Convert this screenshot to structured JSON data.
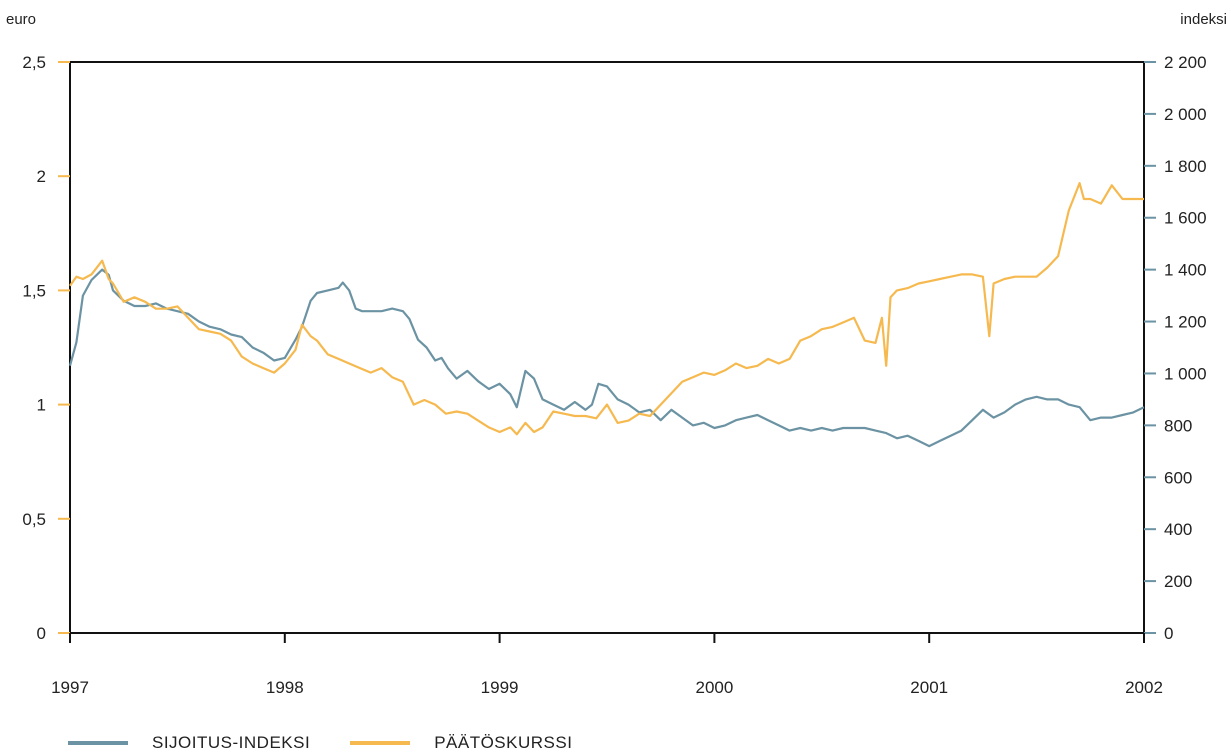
{
  "chart_data": {
    "type": "line",
    "left_axis": {
      "unit": "euro",
      "min": 0,
      "max": 2.5,
      "ticks": [
        0,
        0.5,
        1,
        1.5,
        2,
        2.5
      ],
      "tick_labels": [
        "0",
        "0,5",
        "1",
        "1,5",
        "2",
        "2,5"
      ]
    },
    "right_axis": {
      "unit": "indeksi",
      "min": 0,
      "max": 2200,
      "ticks": [
        0,
        200,
        400,
        600,
        800,
        1000,
        1200,
        1400,
        1600,
        1800,
        2000,
        2200
      ],
      "tick_labels": [
        "0",
        "200",
        "400",
        "600",
        "800",
        "1 000",
        "1 200",
        "1 400",
        "1 600",
        "1 800",
        "2 000",
        "2 200"
      ]
    },
    "x_axis": {
      "min": 1997,
      "max": 2002,
      "ticks": [
        1997,
        1998,
        1999,
        2000,
        2001,
        2002
      ],
      "tick_labels": [
        "1997",
        "1998",
        "1999",
        "2000",
        "2001",
        "2002"
      ]
    },
    "grid": false,
    "legend_position": "bottom-left",
    "series": [
      {
        "name": "SIJOITUS-INDEKSI",
        "axis": "right",
        "color": "#6b93a3",
        "x": [
          1997.0,
          1997.03,
          1997.06,
          1997.1,
          1997.15,
          1997.18,
          1997.2,
          1997.25,
          1997.3,
          1997.35,
          1997.4,
          1997.45,
          1997.5,
          1997.55,
          1997.6,
          1997.65,
          1997.7,
          1997.75,
          1997.8,
          1997.85,
          1997.9,
          1997.95,
          1998.0,
          1998.05,
          1998.08,
          1998.12,
          1998.15,
          1998.2,
          1998.25,
          1998.27,
          1998.3,
          1998.33,
          1998.36,
          1998.4,
          1998.45,
          1998.5,
          1998.55,
          1998.58,
          1998.62,
          1998.66,
          1998.7,
          1998.73,
          1998.76,
          1998.8,
          1998.85,
          1998.9,
          1998.95,
          1999.0,
          1999.05,
          1999.08,
          1999.12,
          1999.16,
          1999.2,
          1999.25,
          1999.3,
          1999.35,
          1999.4,
          1999.43,
          1999.46,
          1999.5,
          1999.55,
          1999.6,
          1999.65,
          1999.7,
          1999.75,
          1999.8,
          1999.85,
          1999.9,
          1999.95,
          2000.0,
          2000.05,
          2000.1,
          2000.15,
          2000.2,
          2000.25,
          2000.3,
          2000.35,
          2000.4,
          2000.45,
          2000.5,
          2000.55,
          2000.6,
          2000.65,
          2000.7,
          2000.75,
          2000.8,
          2000.85,
          2000.9,
          2000.95,
          2001.0,
          2001.05,
          2001.1,
          2001.15,
          2001.2,
          2001.25,
          2001.3,
          2001.35,
          2001.4,
          2001.45,
          2001.5,
          2001.55,
          2001.6,
          2001.65,
          2001.7,
          2001.75,
          2001.8,
          2001.85,
          2001.9,
          2001.95,
          2002.0
        ],
        "values": [
          1030,
          1120,
          1300,
          1360,
          1400,
          1380,
          1320,
          1280,
          1260,
          1260,
          1270,
          1250,
          1240,
          1230,
          1200,
          1180,
          1170,
          1150,
          1140,
          1100,
          1080,
          1050,
          1060,
          1130,
          1180,
          1280,
          1310,
          1320,
          1330,
          1350,
          1320,
          1250,
          1240,
          1240,
          1240,
          1250,
          1240,
          1210,
          1130,
          1100,
          1050,
          1060,
          1020,
          980,
          1010,
          970,
          940,
          960,
          920,
          870,
          1010,
          980,
          900,
          880,
          860,
          890,
          860,
          880,
          960,
          950,
          900,
          880,
          850,
          860,
          820,
          860,
          830,
          800,
          810,
          790,
          800,
          820,
          830,
          840,
          820,
          800,
          780,
          790,
          780,
          790,
          780,
          790,
          790,
          790,
          780,
          770,
          750,
          760,
          740,
          720,
          740,
          760,
          780,
          820,
          860,
          830,
          850,
          880,
          900,
          910,
          900,
          900,
          880,
          870,
          820,
          830,
          830,
          840,
          850,
          870
        ]
      },
      {
        "name": "PÄÄTÖSKURSSI",
        "axis": "left",
        "color": "#f6b94f",
        "x": [
          1997.0,
          1997.03,
          1997.06,
          1997.1,
          1997.15,
          1997.18,
          1997.2,
          1997.25,
          1997.3,
          1997.35,
          1997.4,
          1997.45,
          1997.5,
          1997.55,
          1997.6,
          1997.65,
          1997.7,
          1997.75,
          1997.8,
          1997.85,
          1997.9,
          1997.95,
          1998.0,
          1998.05,
          1998.08,
          1998.12,
          1998.15,
          1998.2,
          1998.25,
          1998.3,
          1998.35,
          1998.4,
          1998.45,
          1998.5,
          1998.55,
          1998.6,
          1998.65,
          1998.7,
          1998.75,
          1998.8,
          1998.85,
          1998.9,
          1998.95,
          1999.0,
          1999.05,
          1999.08,
          1999.12,
          1999.16,
          1999.2,
          1999.25,
          1999.3,
          1999.35,
          1999.4,
          1999.45,
          1999.5,
          1999.55,
          1999.6,
          1999.65,
          1999.7,
          1999.75,
          1999.8,
          1999.85,
          1999.9,
          1999.95,
          2000.0,
          2000.05,
          2000.1,
          2000.15,
          2000.2,
          2000.25,
          2000.3,
          2000.35,
          2000.4,
          2000.45,
          2000.5,
          2000.55,
          2000.6,
          2000.65,
          2000.7,
          2000.75,
          2000.78,
          2000.8,
          2000.82,
          2000.85,
          2000.9,
          2000.95,
          2001.0,
          2001.05,
          2001.1,
          2001.15,
          2001.2,
          2001.25,
          2001.28,
          2001.3,
          2001.35,
          2001.4,
          2001.45,
          2001.5,
          2001.55,
          2001.6,
          2001.65,
          2001.7,
          2001.72,
          2001.75,
          2001.8,
          2001.85,
          2001.9,
          2001.95,
          2002.0
        ],
        "values": [
          1.52,
          1.56,
          1.55,
          1.57,
          1.63,
          1.55,
          1.53,
          1.45,
          1.47,
          1.45,
          1.42,
          1.42,
          1.43,
          1.38,
          1.33,
          1.32,
          1.31,
          1.28,
          1.21,
          1.18,
          1.16,
          1.14,
          1.18,
          1.24,
          1.35,
          1.3,
          1.28,
          1.22,
          1.2,
          1.18,
          1.16,
          1.14,
          1.16,
          1.12,
          1.1,
          1.0,
          1.02,
          1.0,
          0.96,
          0.97,
          0.96,
          0.93,
          0.9,
          0.88,
          0.9,
          0.87,
          0.92,
          0.88,
          0.9,
          0.97,
          0.96,
          0.95,
          0.95,
          0.94,
          1.0,
          0.92,
          0.93,
          0.96,
          0.95,
          1.0,
          1.05,
          1.1,
          1.12,
          1.14,
          1.13,
          1.15,
          1.18,
          1.16,
          1.17,
          1.2,
          1.18,
          1.2,
          1.28,
          1.3,
          1.33,
          1.34,
          1.36,
          1.38,
          1.28,
          1.27,
          1.38,
          1.17,
          1.47,
          1.5,
          1.51,
          1.53,
          1.54,
          1.55,
          1.56,
          1.57,
          1.57,
          1.56,
          1.3,
          1.53,
          1.55,
          1.56,
          1.56,
          1.56,
          1.6,
          1.65,
          1.85,
          1.97,
          1.9,
          1.9,
          1.88,
          1.96,
          1.9,
          1.9,
          1.9
        ]
      }
    ]
  }
}
